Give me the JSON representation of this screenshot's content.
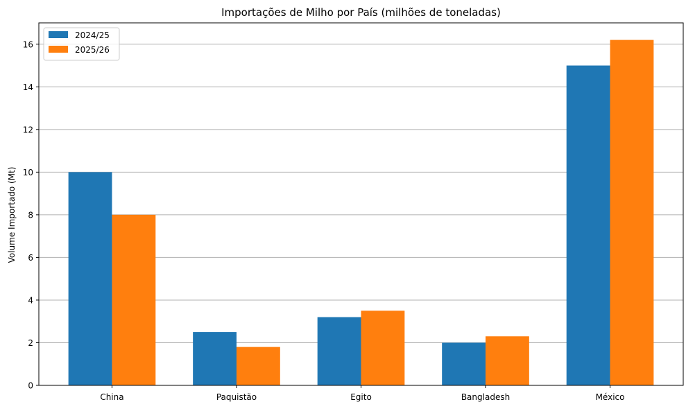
{
  "chart_data": {
    "type": "bar",
    "title": "Importações de Milho por País (milhões de toneladas)",
    "xlabel": "",
    "ylabel": "Volume Importado (Mt)",
    "categories": [
      "China",
      "Paquistão",
      "Egito",
      "Bangladesh",
      "México"
    ],
    "series": [
      {
        "name": "2024/25",
        "color": "#1f77b4",
        "values": [
          10.0,
          2.5,
          3.2,
          2.0,
          15.0
        ]
      },
      {
        "name": "2025/26",
        "color": "#ff7f0e",
        "values": [
          8.0,
          1.8,
          3.5,
          2.3,
          16.2
        ]
      }
    ],
    "ylim": [
      0,
      17
    ],
    "yticks": [
      "0",
      "2",
      "4",
      "6",
      "8",
      "10",
      "12",
      "14",
      "16"
    ],
    "grid": "horizontal",
    "legend_position": "top-left"
  }
}
